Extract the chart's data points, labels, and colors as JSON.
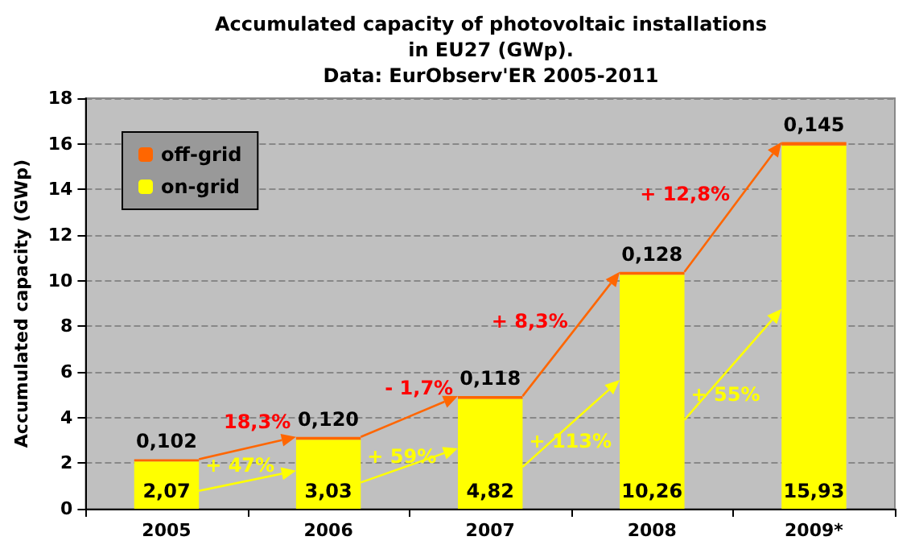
{
  "chart_data": {
    "type": "bar",
    "title": "Accumulated capacity of photovoltaic installations\nin EU27 (GWp).",
    "subtitle": "Data: EurObserv'ER 2005-2011",
    "ylabel": "Accumulated capacity (GWp)",
    "categories": [
      "2005",
      "2006",
      "2007",
      "2008",
      "2009*"
    ],
    "stacked": true,
    "series": [
      {
        "name": "on-grid",
        "color": "#ffff00",
        "values": [
          2.07,
          3.03,
          4.82,
          10.26,
          15.93
        ],
        "value_labels": [
          "2,07",
          "3,03",
          "4,82",
          "10,26",
          "15,93"
        ]
      },
      {
        "name": "off-grid",
        "color": "#ff6600",
        "values": [
          0.102,
          0.12,
          0.118,
          0.128,
          0.145
        ],
        "value_labels": [
          "0,102",
          "0,120",
          "0,118",
          "0,128",
          "0,145"
        ]
      }
    ],
    "ylim": [
      0,
      18
    ],
    "yticks": [
      0,
      2,
      4,
      6,
      8,
      10,
      12,
      14,
      16,
      18
    ],
    "grid": "y",
    "legend": "top left",
    "annotations": [
      {
        "text": "18,3%",
        "x": "2006",
        "y": 3.15
      },
      "+ 47%",
      {
        "text": "- 1,7%",
        "x": "2007",
        "y": 4.94
      },
      "+ 59%",
      "+ 8,3%",
      "+ 113%",
      "+ 12,8%",
      "+ 55%"
    ]
  }
}
